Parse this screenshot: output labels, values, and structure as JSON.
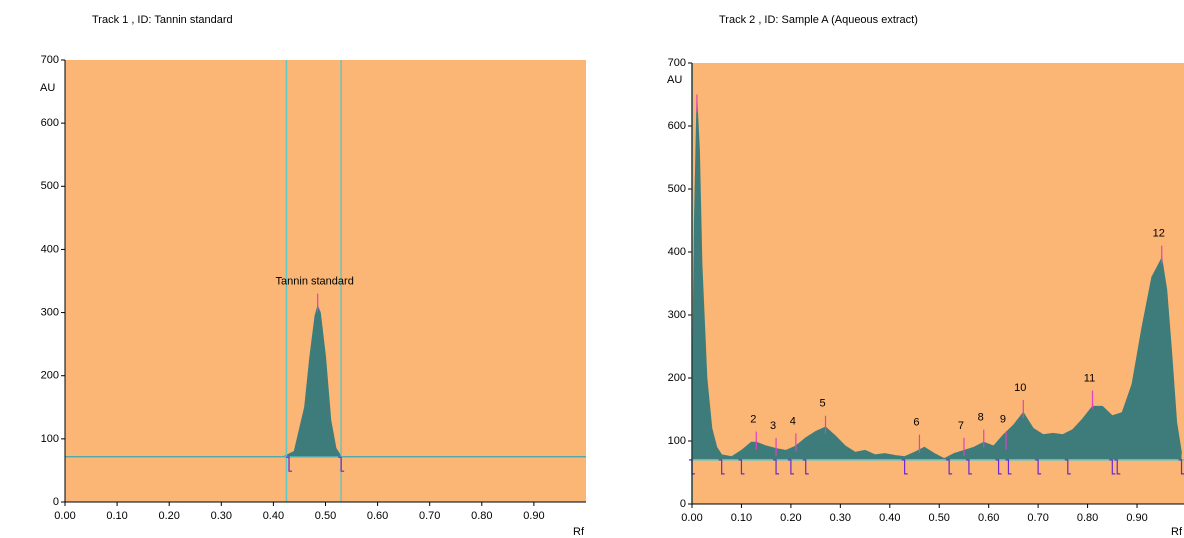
{
  "chart_data": [
    {
      "type": "densitogram",
      "title": "Track  1 , ID: Tannin standard",
      "y_label": "AU",
      "x_label": "Rf",
      "xlim": [
        0,
        1.0
      ],
      "ylim": [
        0,
        700
      ],
      "xticks": [
        {
          "value": 0,
          "label": "0.00"
        },
        {
          "value": 0.1,
          "label": "0.10"
        },
        {
          "value": 0.2,
          "label": "0.20"
        },
        {
          "value": 0.3,
          "label": "0.30"
        },
        {
          "value": 0.4,
          "label": "0.40"
        },
        {
          "value": 0.5,
          "label": "0.50"
        },
        {
          "value": 0.6,
          "label": "0.60"
        },
        {
          "value": 0.7,
          "label": "0.70"
        },
        {
          "value": 0.8,
          "label": "0.80"
        },
        {
          "value": 0.9,
          "label": "0.90"
        }
      ],
      "yticks": [
        0,
        100,
        200,
        300,
        400,
        500,
        600,
        700
      ],
      "x": [
        0,
        0.42,
        0.44,
        0.46,
        0.47,
        0.48,
        0.485,
        0.49,
        0.5,
        0.51,
        0.52,
        0.53,
        1.0
      ],
      "values": [
        72,
        72,
        80,
        150,
        230,
        295,
        310,
        300,
        230,
        130,
        85,
        72,
        72
      ],
      "baseline": 71,
      "color": "#3e7c7b",
      "background": "#fbb574",
      "cursors": [
        0.425,
        0.53
      ],
      "boundaries": [
        0.43,
        0.53
      ],
      "peaks": [
        {
          "label": "Tannin standard",
          "rf": 0.485,
          "height": 330
        }
      ]
    },
    {
      "type": "densitogram",
      "title": "Track  2 , ID: Sample A (Aqueous extract)",
      "y_label": "AU",
      "x_label": "Rf",
      "xlim": [
        0,
        0.995
      ],
      "ylim": [
        0,
        700
      ],
      "xticks": [
        {
          "value": 0,
          "label": "0.00"
        },
        {
          "value": 0.1,
          "label": "0.10"
        },
        {
          "value": 0.2,
          "label": "0.20"
        },
        {
          "value": 0.3,
          "label": "0.30"
        },
        {
          "value": 0.4,
          "label": "0.40"
        },
        {
          "value": 0.5,
          "label": "0.50"
        },
        {
          "value": 0.6,
          "label": "0.60"
        },
        {
          "value": 0.7,
          "label": "0.70"
        },
        {
          "value": 0.8,
          "label": "0.80"
        },
        {
          "value": 0.9,
          "label": "0.90"
        }
      ],
      "yticks": [
        0,
        100,
        200,
        300,
        400,
        500,
        600,
        700
      ],
      "x": [
        0,
        0.005,
        0.01,
        0.015,
        0.02,
        0.03,
        0.04,
        0.05,
        0.06,
        0.08,
        0.1,
        0.12,
        0.13,
        0.15,
        0.17,
        0.19,
        0.21,
        0.23,
        0.25,
        0.27,
        0.29,
        0.31,
        0.33,
        0.35,
        0.37,
        0.39,
        0.41,
        0.43,
        0.45,
        0.47,
        0.49,
        0.51,
        0.53,
        0.55,
        0.57,
        0.59,
        0.61,
        0.63,
        0.65,
        0.67,
        0.69,
        0.71,
        0.73,
        0.75,
        0.77,
        0.79,
        0.81,
        0.83,
        0.85,
        0.87,
        0.89,
        0.91,
        0.93,
        0.95,
        0.96,
        0.97,
        0.98,
        0.99
      ],
      "values": [
        120,
        450,
        640,
        560,
        380,
        200,
        120,
        90,
        78,
        75,
        85,
        98,
        98,
        92,
        88,
        85,
        92,
        105,
        115,
        122,
        108,
        92,
        82,
        85,
        78,
        80,
        77,
        75,
        82,
        90,
        80,
        72,
        80,
        85,
        90,
        98,
        92,
        110,
        125,
        145,
        120,
        110,
        112,
        110,
        118,
        135,
        155,
        155,
        140,
        145,
        190,
        280,
        360,
        390,
        340,
        240,
        130,
        80
      ],
      "baseline": 70,
      "color": "#3e7c7b",
      "background": "#fbb574",
      "cursors": [
        0
      ],
      "boundaries": [
        0.0,
        0.06,
        0.1,
        0.17,
        0.2,
        0.23,
        0.43,
        0.52,
        0.56,
        0.62,
        0.64,
        0.7,
        0.76,
        0.85,
        0.86,
        0.99
      ],
      "peaks": [
        {
          "label": null,
          "rf": 0.01,
          "height": 650
        },
        {
          "label": "2",
          "rf": 0.13,
          "height": 115
        },
        {
          "label": "3",
          "rf": 0.17,
          "height": 105
        },
        {
          "label": "4",
          "rf": 0.21,
          "height": 112
        },
        {
          "label": "5",
          "rf": 0.27,
          "height": 140
        },
        {
          "label": "6",
          "rf": 0.46,
          "height": 110
        },
        {
          "label": "7",
          "rf": 0.55,
          "height": 105
        },
        {
          "label": "8",
          "rf": 0.59,
          "height": 118
        },
        {
          "label": "9",
          "rf": 0.635,
          "height": 115
        },
        {
          "label": "10",
          "rf": 0.67,
          "height": 165
        },
        {
          "label": "11",
          "rf": 0.81,
          "height": 180
        },
        {
          "label": "12",
          "rf": 0.95,
          "height": 410
        }
      ]
    }
  ]
}
